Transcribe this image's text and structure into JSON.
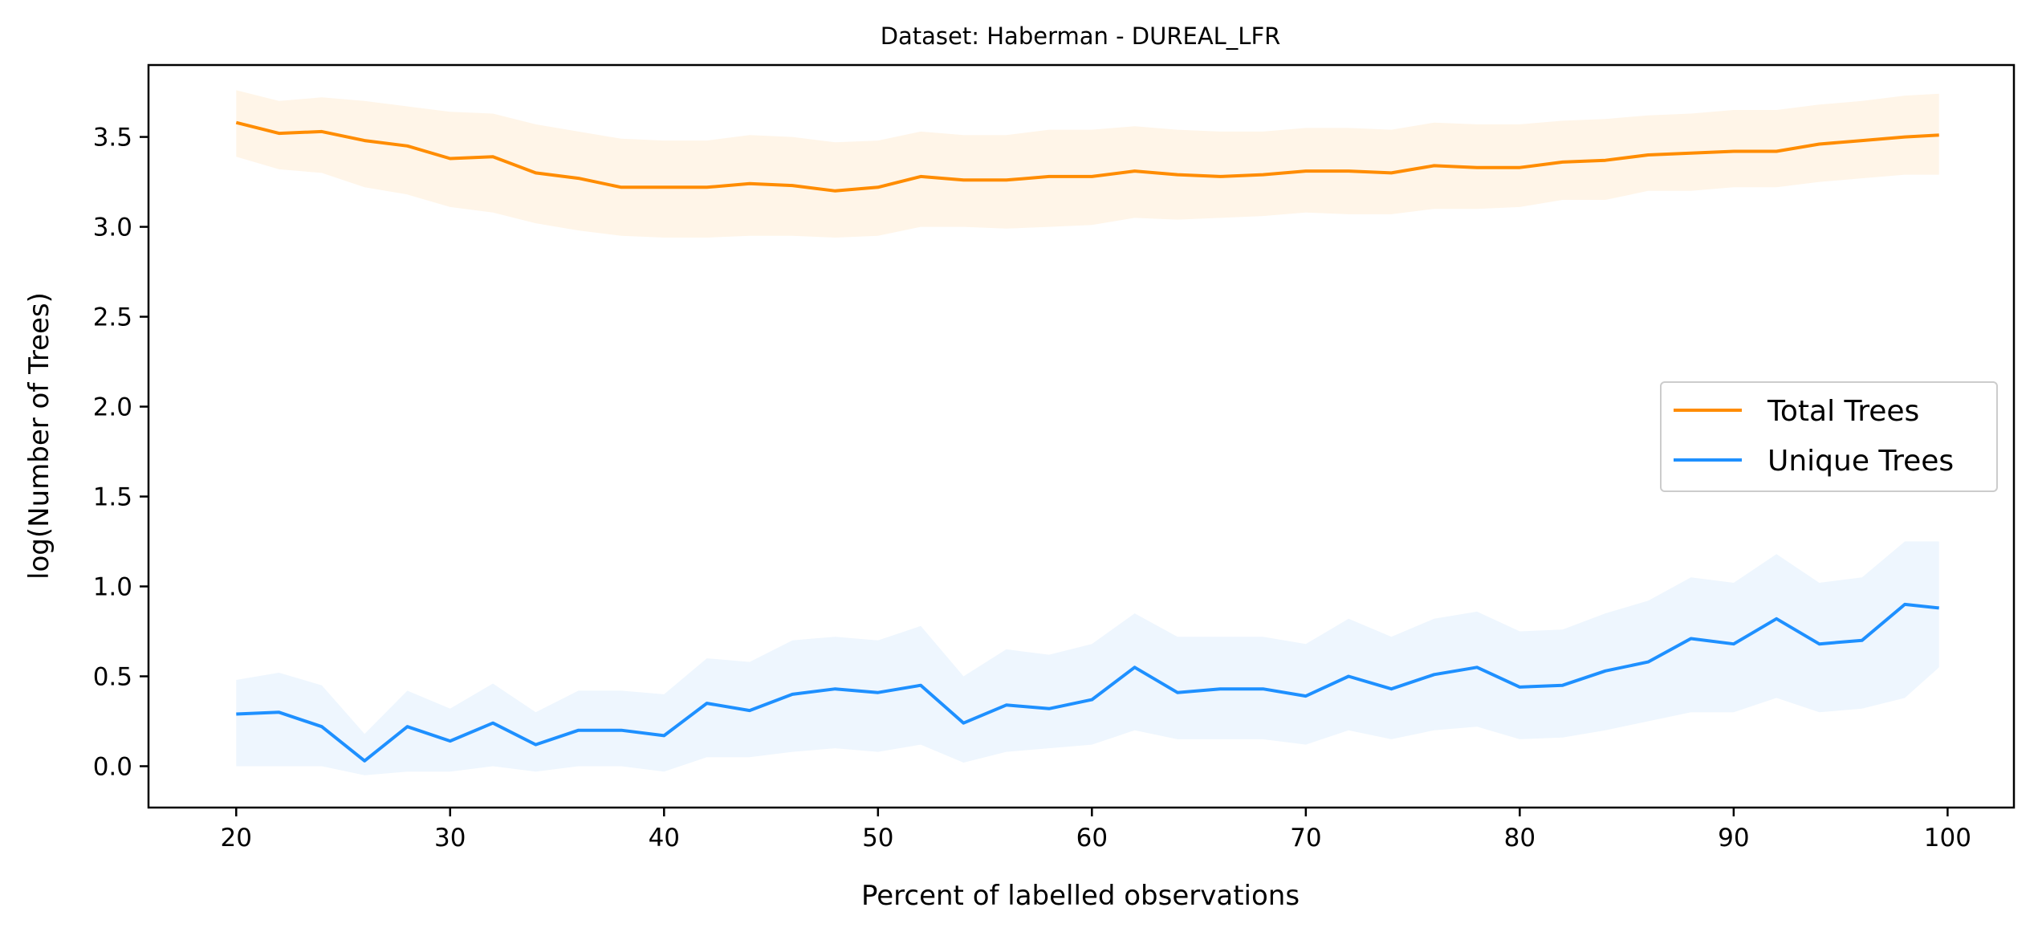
{
  "chart_data": {
    "type": "line",
    "title": "Dataset: Haberman - DUREAL_LFR",
    "xlabel": "Percent of labelled observations",
    "ylabel": "log(Number of Trees)",
    "xlim": [
      15.9,
      103.1
    ],
    "ylim": [
      -0.23,
      3.9
    ],
    "xticks": [
      20,
      30,
      40,
      50,
      60,
      70,
      80,
      90,
      100
    ],
    "yticks": [
      0.0,
      0.5,
      1.0,
      1.5,
      2.0,
      2.5,
      3.0,
      3.5
    ],
    "grid": false,
    "legend": {
      "placement": "center-right",
      "entries": [
        "Total Trees",
        "Unique Trees"
      ]
    },
    "x": [
      20,
      22,
      24,
      26,
      28,
      30,
      32,
      34,
      36,
      38,
      40,
      42,
      44,
      46,
      48,
      50,
      52,
      54,
      56,
      58,
      60,
      62,
      64,
      66,
      68,
      70,
      72,
      74,
      76,
      78,
      80,
      82,
      84,
      86,
      88,
      90,
      92,
      94,
      96,
      98,
      99.6
    ],
    "series": [
      {
        "name": "Total Trees",
        "color": "#ff8c00",
        "band_color": "#fff5e8",
        "values": [
          3.58,
          3.52,
          3.53,
          3.48,
          3.45,
          3.38,
          3.39,
          3.3,
          3.27,
          3.22,
          3.22,
          3.22,
          3.24,
          3.23,
          3.2,
          3.22,
          3.28,
          3.26,
          3.26,
          3.28,
          3.28,
          3.31,
          3.29,
          3.28,
          3.29,
          3.31,
          3.31,
          3.3,
          3.34,
          3.33,
          3.33,
          3.36,
          3.37,
          3.4,
          3.41,
          3.42,
          3.42,
          3.46,
          3.48,
          3.5,
          3.51
        ],
        "lower": [
          3.39,
          3.32,
          3.3,
          3.22,
          3.18,
          3.11,
          3.08,
          3.02,
          2.98,
          2.95,
          2.94,
          2.94,
          2.95,
          2.95,
          2.94,
          2.95,
          3.0,
          3.0,
          2.99,
          3.0,
          3.01,
          3.05,
          3.04,
          3.05,
          3.06,
          3.08,
          3.07,
          3.07,
          3.1,
          3.1,
          3.11,
          3.15,
          3.15,
          3.2,
          3.2,
          3.22,
          3.22,
          3.25,
          3.27,
          3.29,
          3.29
        ],
        "upper": [
          3.76,
          3.7,
          3.72,
          3.7,
          3.67,
          3.64,
          3.63,
          3.57,
          3.53,
          3.49,
          3.48,
          3.48,
          3.51,
          3.5,
          3.47,
          3.48,
          3.53,
          3.51,
          3.51,
          3.54,
          3.54,
          3.56,
          3.54,
          3.53,
          3.53,
          3.55,
          3.55,
          3.54,
          3.58,
          3.57,
          3.57,
          3.59,
          3.6,
          3.62,
          3.63,
          3.65,
          3.65,
          3.68,
          3.7,
          3.73,
          3.74
        ]
      },
      {
        "name": "Unique Trees",
        "color": "#1e90ff",
        "band_color": "#eef6fe",
        "values": [
          0.29,
          0.3,
          0.22,
          0.03,
          0.22,
          0.14,
          0.24,
          0.12,
          0.2,
          0.2,
          0.17,
          0.35,
          0.31,
          0.4,
          0.43,
          0.41,
          0.45,
          0.24,
          0.34,
          0.32,
          0.37,
          0.55,
          0.41,
          0.43,
          0.43,
          0.39,
          0.5,
          0.43,
          0.51,
          0.55,
          0.44,
          0.45,
          0.53,
          0.58,
          0.71,
          0.68,
          0.82,
          0.68,
          0.7,
          0.9,
          0.88
        ],
        "lower": [
          0.0,
          0.0,
          0.0,
          -0.05,
          -0.03,
          -0.03,
          0.0,
          -0.03,
          0.0,
          0.0,
          -0.03,
          0.05,
          0.05,
          0.08,
          0.1,
          0.08,
          0.12,
          0.02,
          0.08,
          0.1,
          0.12,
          0.2,
          0.15,
          0.15,
          0.15,
          0.12,
          0.2,
          0.15,
          0.2,
          0.22,
          0.15,
          0.16,
          0.2,
          0.25,
          0.3,
          0.3,
          0.38,
          0.3,
          0.32,
          0.38,
          0.55
        ],
        "upper": [
          0.48,
          0.52,
          0.45,
          0.18,
          0.42,
          0.32,
          0.46,
          0.3,
          0.42,
          0.42,
          0.4,
          0.6,
          0.58,
          0.7,
          0.72,
          0.7,
          0.78,
          0.5,
          0.65,
          0.62,
          0.68,
          0.85,
          0.72,
          0.72,
          0.72,
          0.68,
          0.82,
          0.72,
          0.82,
          0.86,
          0.75,
          0.76,
          0.85,
          0.92,
          1.05,
          1.02,
          1.18,
          1.02,
          1.05,
          1.25,
          1.25
        ]
      }
    ]
  }
}
